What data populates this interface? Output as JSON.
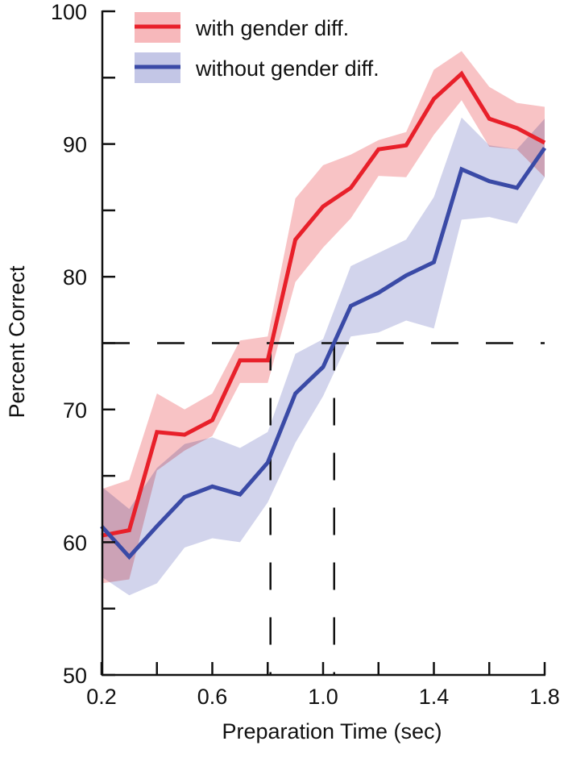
{
  "chart_data": {
    "type": "line",
    "title": "",
    "xlabel": "Preparation Time (sec)",
    "ylabel": "Percent Correct",
    "xlim": [
      0.2,
      1.8
    ],
    "ylim": [
      50,
      100
    ],
    "x_ticks": [
      0.2,
      0.4,
      0.6,
      0.8,
      1.0,
      1.2,
      1.4,
      1.6,
      1.8
    ],
    "x_tick_labels": [
      "0.2",
      "0.6",
      "1.0",
      "1.4",
      "1.8"
    ],
    "x_tick_label_values": [
      0.2,
      0.6,
      1.0,
      1.4,
      1.8
    ],
    "y_ticks": [
      50,
      55,
      60,
      65,
      70,
      75,
      80,
      85,
      90,
      95,
      100
    ],
    "y_tick_labels": [
      "50",
      "60",
      "70",
      "80",
      "90",
      "100"
    ],
    "y_tick_label_values": [
      50,
      60,
      70,
      80,
      90,
      100
    ],
    "grid": false,
    "legend_position": "top-left",
    "x": [
      0.2,
      0.3,
      0.4,
      0.5,
      0.6,
      0.7,
      0.8,
      0.9,
      1.0,
      1.1,
      1.2,
      1.3,
      1.4,
      1.5,
      1.6,
      1.7,
      1.8
    ],
    "series": [
      {
        "name": "with gender diff.",
        "color": "#e8202a",
        "band_color": "#f7b8bb",
        "values": [
          60.5,
          60.9,
          68.3,
          68.1,
          69.2,
          73.7,
          73.7,
          82.8,
          85.3,
          86.7,
          89.6,
          89.9,
          93.4,
          95.3,
          91.9,
          91.2,
          90.1
        ],
        "upper": [
          64.0,
          64.7,
          71.2,
          70.0,
          71.2,
          75.2,
          75.5,
          85.9,
          88.4,
          89.2,
          90.3,
          90.9,
          95.6,
          97.0,
          94.3,
          93.1,
          92.8
        ],
        "lower": [
          56.9,
          57.2,
          65.4,
          66.9,
          68.0,
          72.0,
          72.0,
          79.6,
          82.2,
          84.4,
          87.6,
          87.5,
          90.7,
          93.3,
          89.8,
          89.6,
          87.5
        ]
      },
      {
        "name": "without gender diff.",
        "color": "#3a4aa6",
        "band_color": "#c3c6e6",
        "values": [
          61.2,
          58.9,
          61.2,
          63.4,
          64.2,
          63.6,
          66.0,
          71.2,
          73.2,
          77.8,
          78.8,
          80.1,
          81.1,
          88.1,
          87.2,
          86.7,
          89.7
        ],
        "upper": [
          64.2,
          62.5,
          65.6,
          67.4,
          67.9,
          67.1,
          68.3,
          74.2,
          75.3,
          80.8,
          81.8,
          82.8,
          86.0,
          92.0,
          89.9,
          89.6,
          91.9
        ],
        "lower": [
          57.4,
          56.0,
          56.9,
          59.6,
          60.3,
          60.0,
          63.0,
          67.5,
          71.0,
          75.5,
          75.8,
          76.7,
          76.1,
          84.3,
          84.5,
          84.0,
          87.5
        ]
      }
    ],
    "reference_lines": {
      "horizontal_y": 75,
      "vertical_x": [
        0.81,
        1.04
      ]
    }
  }
}
